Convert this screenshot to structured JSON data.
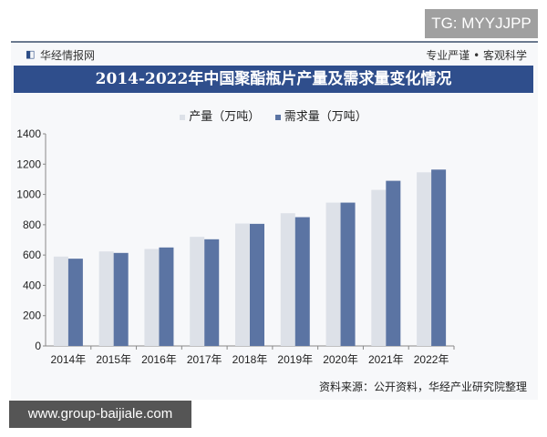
{
  "watermark_top": "TG: MYYJJPP",
  "watermark_bottom": "www.group-baijiale.com",
  "header": {
    "brand": "华经情报网",
    "slogan": "专业严谨 • 客观科学"
  },
  "footer": {
    "source": "资料来源：公开资料，华经产业研究院整理"
  },
  "chart_data": {
    "type": "bar",
    "title": "2014-2022年中国聚酯瓶片产量及需求量变化情况",
    "categories": [
      "2014年",
      "2015年",
      "2016年",
      "2017年",
      "2018年",
      "2019年",
      "2020年",
      "2021年",
      "2022年"
    ],
    "series": [
      {
        "name": "产量（万吨）",
        "color": "#dde1e8",
        "values": [
          590,
          624,
          640,
          720,
          808,
          876,
          946,
          1030,
          1146
        ]
      },
      {
        "name": "需求量（万吨）",
        "color": "#5b74a3",
        "values": [
          576,
          614,
          650,
          704,
          806,
          850,
          946,
          1090,
          1164
        ]
      }
    ],
    "ylim": [
      0,
      1400
    ],
    "yticks": [
      "0",
      "200",
      "400",
      "600",
      "800",
      "1000",
      "1200",
      "1400"
    ],
    "grid": false,
    "legend": "top"
  }
}
